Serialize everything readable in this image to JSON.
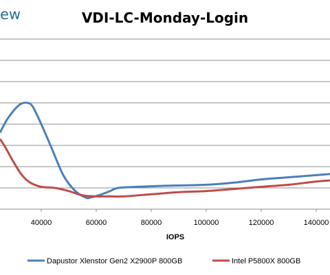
{
  "brand": {
    "text": "ew"
  },
  "chart_data": {
    "type": "line",
    "title": "VDI-LC-Monday-Login",
    "xlabel": "IOPS",
    "ylabel": "",
    "xlim": [
      25000,
      145000
    ],
    "ylim": [
      0,
      8
    ],
    "grid": true,
    "legend_position": "bottom",
    "x_ticks": [
      {
        "value": 40000,
        "label": "40000"
      },
      {
        "value": 60000,
        "label": "60000"
      },
      {
        "value": 80000,
        "label": "80000"
      },
      {
        "value": 100000,
        "label": "100000"
      },
      {
        "value": 120000,
        "label": "120000"
      },
      {
        "value": 140000,
        "label": "140000"
      }
    ],
    "series": [
      {
        "name": "Dapustor Xlenstor Gen2 X2900P 800GB",
        "color": "#4a7ebb",
        "x": [
          25000,
          28000,
          32000,
          35000,
          37000,
          40000,
          44000,
          48000,
          52000,
          56000,
          58000,
          62000,
          65000,
          68000,
          75000,
          85000,
          100000,
          110000,
          120000,
          130000,
          140000,
          145000
        ],
        "y": [
          3.6,
          4.3,
          4.9,
          5.0,
          4.8,
          4.0,
          2.8,
          1.6,
          0.9,
          0.55,
          0.55,
          0.7,
          0.85,
          1.0,
          1.05,
          1.1,
          1.15,
          1.25,
          1.4,
          1.5,
          1.6,
          1.65
        ]
      },
      {
        "name": "Intel P5800X 800GB",
        "color": "#be4b48",
        "x": [
          25000,
          27000,
          30000,
          33000,
          36000,
          40000,
          45000,
          50000,
          55000,
          60000,
          65000,
          70000,
          80000,
          90000,
          100000,
          110000,
          120000,
          130000,
          140000,
          145000
        ],
        "y": [
          3.3,
          2.9,
          2.2,
          1.6,
          1.25,
          1.05,
          1.0,
          0.85,
          0.65,
          0.6,
          0.6,
          0.6,
          0.7,
          0.8,
          0.85,
          0.95,
          1.05,
          1.15,
          1.3,
          1.35
        ]
      }
    ]
  }
}
